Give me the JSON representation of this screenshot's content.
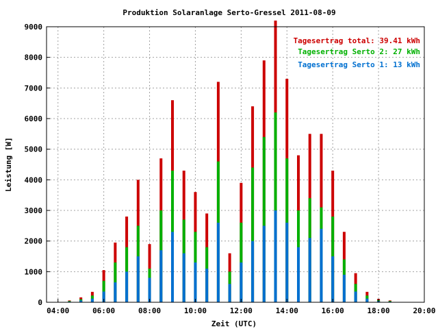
{
  "chart_data": {
    "type": "bar",
    "title": "Produktion Solaranlage Serto-Gressel 2011-08-09",
    "xlabel": "Zeit (UTC)",
    "ylabel": "Leistung [W]",
    "xlim": [
      "03:30",
      "20:00"
    ],
    "ylim": [
      0,
      9000
    ],
    "xticks": [
      "04:00",
      "06:00",
      "08:00",
      "10:00",
      "12:00",
      "14:00",
      "16:00",
      "18:00",
      "20:00"
    ],
    "yticks": [
      "0",
      "1000",
      "2000",
      "3000",
      "4000",
      "5000",
      "6000",
      "7000",
      "8000",
      "9000"
    ],
    "grid": true,
    "legend_position": "top-right",
    "legend": [
      {
        "label": "Tagesertrag total: 39.41 kWh",
        "color": "#cc0000"
      },
      {
        "label": "Tagesertrag Serto 2: 27 kWh",
        "color": "#00b000"
      },
      {
        "label": "Tagesertrag Serto 1: 13 kWh",
        "color": "#0070d0"
      }
    ],
    "stacked": true,
    "x": [
      "04:30",
      "05:00",
      "05:30",
      "06:00",
      "06:30",
      "07:00",
      "07:30",
      "08:00",
      "08:30",
      "09:00",
      "09:30",
      "10:00",
      "10:30",
      "11:00",
      "11:30",
      "12:00",
      "12:30",
      "13:00",
      "13:30",
      "14:00",
      "14:30",
      "15:00",
      "15:30",
      "16:00",
      "16:30",
      "17:00",
      "17:30",
      "18:00",
      "18:30"
    ],
    "series": [
      {
        "name": "Serto 1",
        "color": "#0070d0",
        "values": [
          20,
          60,
          120,
          350,
          650,
          1000,
          1500,
          800,
          1700,
          2300,
          1600,
          1300,
          1100,
          2600,
          600,
          1300,
          2000,
          2500,
          3000,
          2600,
          1800,
          2100,
          2400,
          1500,
          900,
          350,
          120,
          40,
          20
        ]
      },
      {
        "name": "Serto 2",
        "color": "#00b000",
        "values": [
          40,
          100,
          220,
          700,
          1300,
          1800,
          2500,
          1100,
          3000,
          4300,
          2700,
          2300,
          1800,
          4600,
          1000,
          2600,
          4400,
          5400,
          6200,
          4700,
          3000,
          3400,
          3100,
          2800,
          1400,
          600,
          220,
          70,
          40
        ]
      },
      {
        "name": "Total",
        "color": "#cc0000",
        "values": [
          60,
          160,
          340,
          1050,
          1950,
          2800,
          4000,
          1900,
          4700,
          6600,
          4300,
          3600,
          2900,
          7200,
          1600,
          3900,
          6400,
          7900,
          9200,
          7300,
          4800,
          5500,
          5500,
          4300,
          2300,
          950,
          340,
          110,
          60
        ]
      }
    ]
  }
}
